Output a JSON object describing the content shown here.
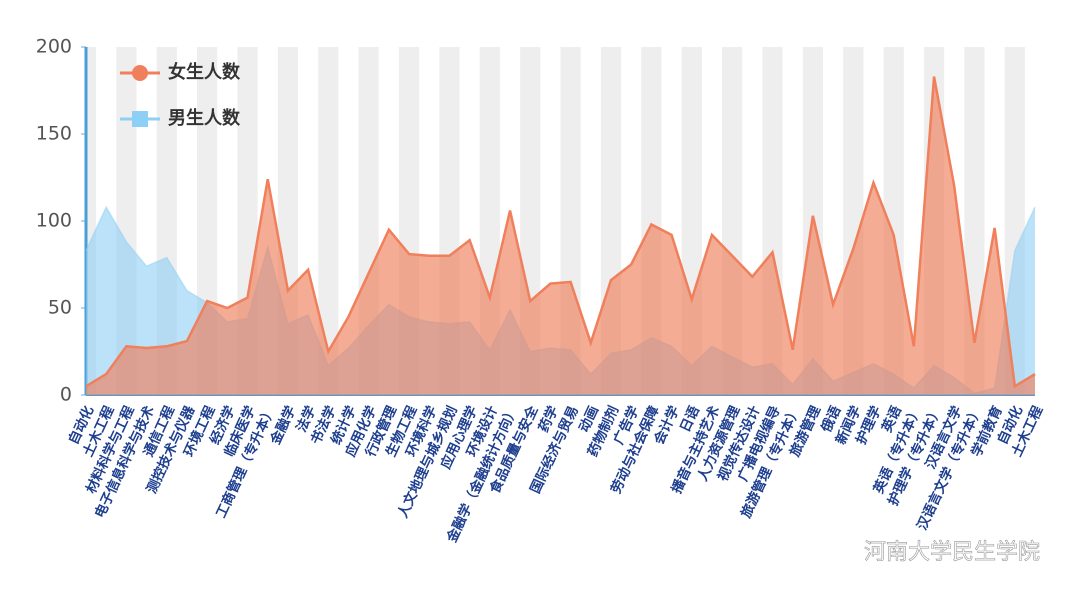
{
  "chart_data": {
    "type": "area",
    "categories": [
      "自动化",
      "土木工程",
      "材料科学与工程",
      "电子信息科学与技术",
      "通信工程",
      "测控技术与仪器",
      "环境工程",
      "经济学",
      "临床医学",
      "工商管理（专升本）",
      "金融学",
      "法学",
      "书法学",
      "统计学",
      "应用化学",
      "行政管理",
      "生物工程",
      "环境科学",
      "人文地理与城乡规划",
      "应用心理学",
      "环境设计",
      "金融学（金融统计方向）",
      "食品质量与安全",
      "药学",
      "国际经济与贸易",
      "动画",
      "药物制剂",
      "广告学",
      "劳动与社会保障",
      "会计学",
      "日语",
      "播音与主持艺术",
      "人力资源管理",
      "视觉传达设计",
      "广播电视编导",
      "旅游管理（专升本）",
      "旅游管理",
      "俄语",
      "新闻学",
      "护理学",
      "英语",
      "英语（专升本）",
      "护理学（专升本）",
      "汉语言文学",
      "汉语言文学（专升本）",
      "学前教育",
      "自动化",
      "土木工程"
    ],
    "series": [
      {
        "name": "女生人数",
        "color": "#f07f5c",
        "values": [
          5,
          12,
          28,
          27,
          28,
          31,
          54,
          50,
          56,
          124,
          60,
          72,
          25,
          45,
          70,
          95,
          81,
          80,
          80,
          89,
          56,
          106,
          54,
          64,
          65,
          30,
          66,
          75,
          98,
          92,
          55,
          92,
          80,
          68,
          82,
          26,
          103,
          52,
          84,
          122,
          92,
          28,
          183,
          120,
          30,
          96,
          5,
          12
        ]
      },
      {
        "name": "男生人数",
        "color": "#8ecff5",
        "values": [
          83,
          108,
          88,
          74,
          79,
          60,
          53,
          42,
          44,
          85,
          41,
          46,
          17,
          27,
          40,
          52,
          45,
          42,
          41,
          42,
          26,
          49,
          25,
          27,
          26,
          12,
          24,
          26,
          33,
          28,
          17,
          28,
          22,
          16,
          18,
          6,
          21,
          8,
          13,
          18,
          12,
          4,
          17,
          10,
          1,
          4,
          83,
          108
        ]
      }
    ],
    "ylim": [
      0,
      200
    ],
    "yticks": [
      0,
      50,
      100,
      150,
      200
    ],
    "legend": "upper-left",
    "watermark": "河南大学民生学院"
  }
}
